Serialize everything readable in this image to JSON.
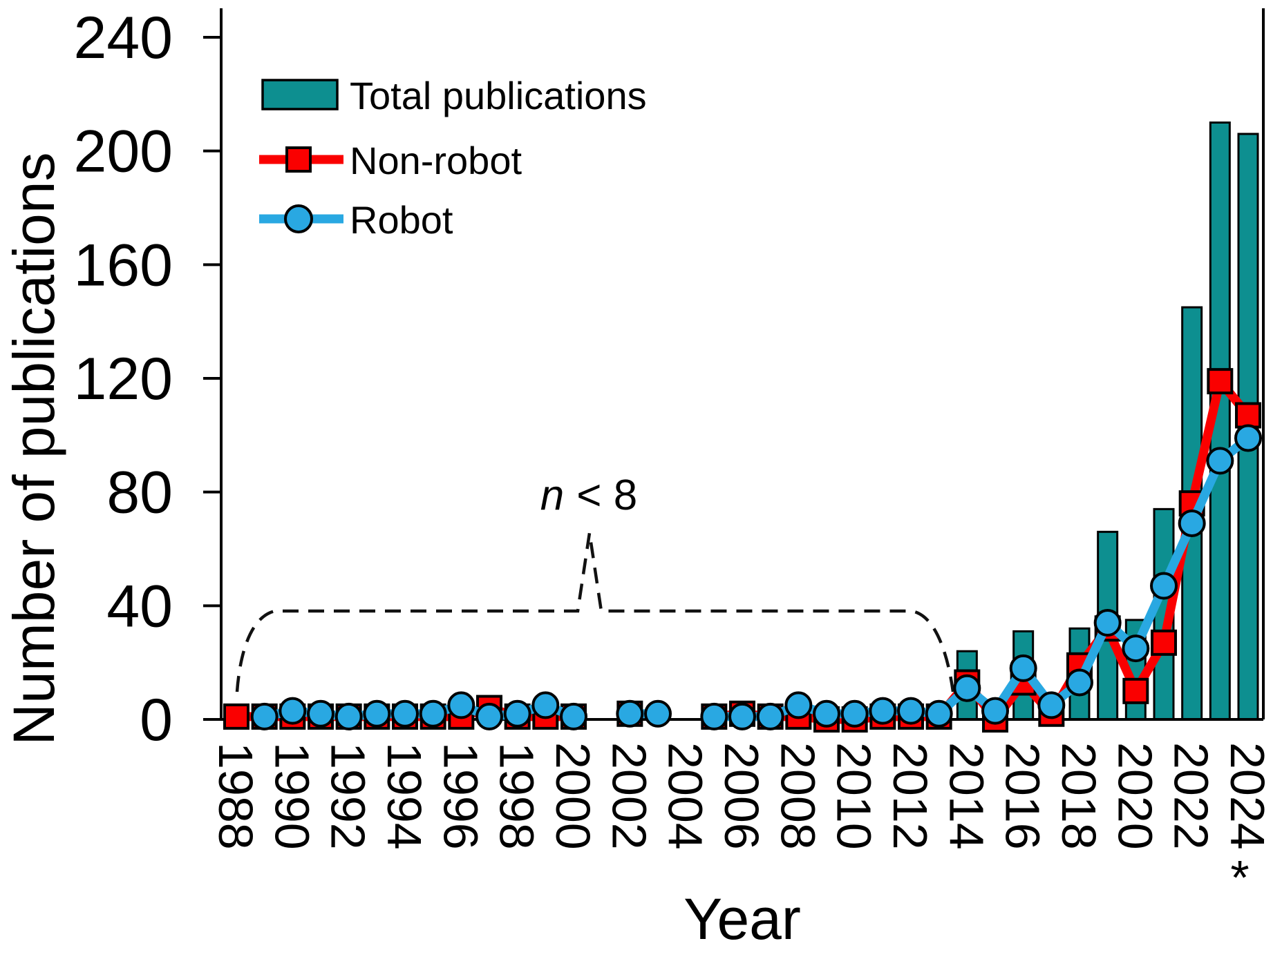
{
  "figure": {
    "y_axis": {
      "label": "Number of publications",
      "tick_labels": [
        0,
        40,
        80,
        120,
        160,
        200,
        240
      ]
    },
    "x_axis": {
      "label": "Year",
      "tick_labels": [
        "1988",
        "1990",
        "1992",
        "1994",
        "1996",
        "1998",
        "2000",
        "2002",
        "2004",
        "2006",
        "2008",
        "2010",
        "2012",
        "2014",
        "2016",
        "2018",
        "2020",
        "2022",
        "2024"
      ],
      "footnote_marker": "*"
    },
    "legend": {
      "items": [
        {
          "label": "Total publications",
          "swatch": "bar",
          "color": "#0d8f90"
        },
        {
          "label": "Non-robot",
          "swatch": "line-square",
          "color": "#fa0000"
        },
        {
          "label": "Robot",
          "swatch": "line-circle",
          "color": "#29a8e2"
        }
      ]
    },
    "annotation": {
      "variable": "n",
      "comparison": "< 8"
    }
  },
  "chart_data": {
    "type": "bar+line",
    "title": "",
    "xlabel": "Year",
    "ylabel": "Number of publications",
    "ylim": [
      0,
      240
    ],
    "yticks": [
      0,
      40,
      80,
      120,
      160,
      200,
      240
    ],
    "grid": false,
    "legend_position": "upper-left",
    "x": [
      1988,
      1989,
      1990,
      1991,
      1992,
      1993,
      1994,
      1995,
      1996,
      1997,
      1998,
      1999,
      2000,
      2001,
      2002,
      2003,
      2004,
      2005,
      2006,
      2007,
      2008,
      2009,
      2010,
      2011,
      2012,
      2013,
      2014,
      2015,
      2016,
      2017,
      2018,
      2019,
      2020,
      2021,
      2022,
      2023,
      2024
    ],
    "series": [
      {
        "name": "Total publications",
        "type": "bar",
        "color": "#0d8f90",
        "values": [
          1,
          2,
          4,
          3,
          2,
          3,
          3,
          3,
          6,
          5,
          3,
          6,
          2,
          0,
          4,
          2,
          0,
          2,
          3,
          2,
          6,
          2,
          2,
          4,
          4,
          3,
          24,
          3,
          31,
          7,
          32,
          66,
          35,
          74,
          145,
          210,
          206
        ]
      },
      {
        "name": "Non-robot",
        "type": "line",
        "marker": "square",
        "color": "#fa0000",
        "values": [
          1,
          1,
          1,
          1,
          1,
          1,
          1,
          1,
          1,
          4,
          1,
          1,
          1,
          null,
          2,
          null,
          null,
          1,
          2,
          1,
          1,
          0,
          0,
          1,
          1,
          1,
          13,
          0,
          13,
          2,
          19,
          32,
          10,
          27,
          76,
          119,
          107
        ]
      },
      {
        "name": "Robot",
        "type": "line",
        "marker": "circle",
        "color": "#29a8e2",
        "values": [
          null,
          1,
          3,
          2,
          1,
          2,
          2,
          2,
          5,
          1,
          2,
          5,
          1,
          null,
          2,
          2,
          null,
          1,
          1,
          1,
          5,
          2,
          2,
          3,
          3,
          2,
          11,
          3,
          18,
          5,
          13,
          34,
          25,
          47,
          69,
          91,
          99
        ]
      }
    ],
    "annotation_text": "n < 8",
    "annotation_applies_to_years": "1988-2013",
    "footnote": "* under 2024"
  }
}
